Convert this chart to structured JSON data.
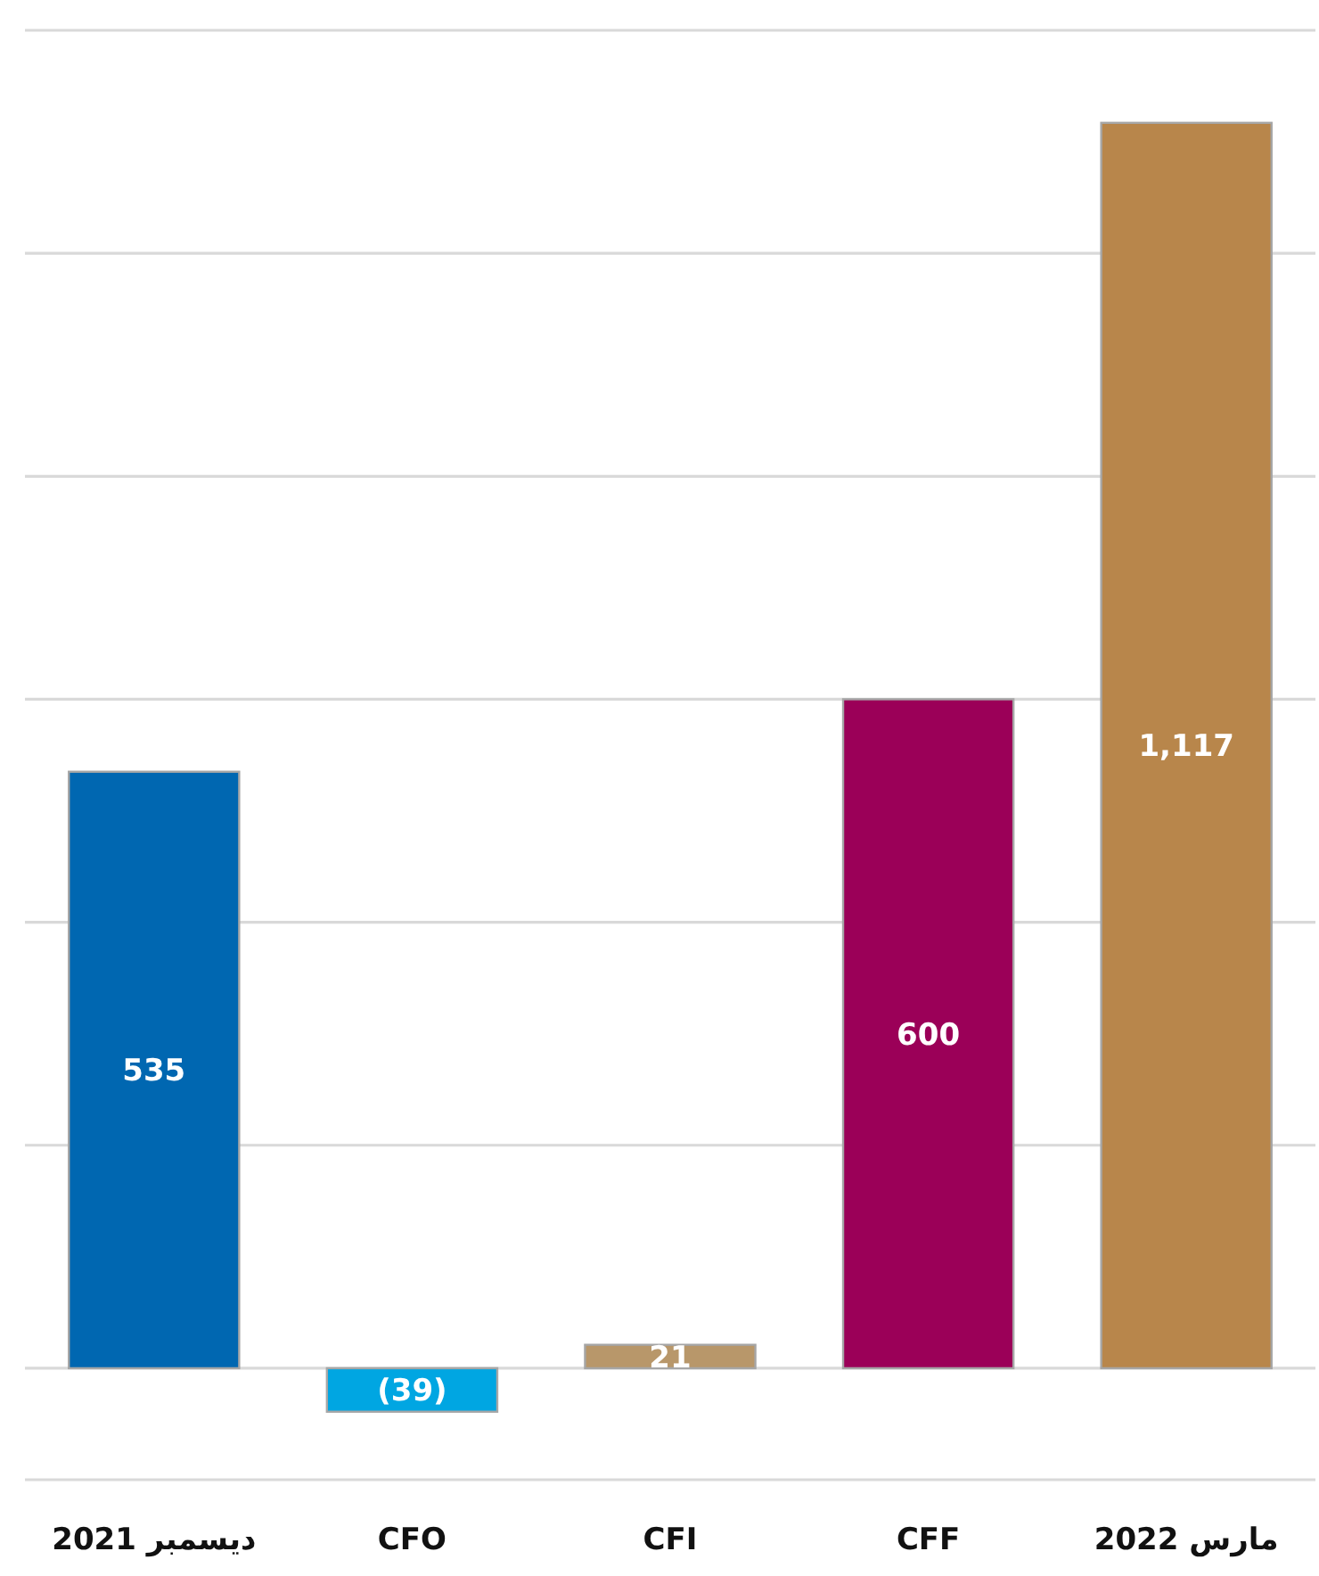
{
  "chart_data": {
    "type": "bar",
    "categories": [
      "ديسمبر 2021",
      "CFO",
      "CFI",
      "CFF",
      "مارس 2022"
    ],
    "values": [
      535,
      -39,
      21,
      600,
      1117
    ],
    "colors": [
      "#0067b1",
      "#00a6e2",
      "#b8976a",
      "#9b0058",
      "#b8864b"
    ],
    "value_labels": [
      "535",
      "(39)",
      "21",
      "600",
      "1,117"
    ],
    "ylim": [
      -100,
      1200
    ],
    "yticks": [
      {
        "value": -100,
        "label": null
      },
      {
        "value": 0,
        "label": null
      },
      {
        "value": 200,
        "label": null
      },
      {
        "value": 400,
        "label": null
      },
      {
        "value": 600,
        "label": null
      },
      {
        "value": 800,
        "label": null
      },
      {
        "value": 1000,
        "label": null
      },
      {
        "value": 1200,
        "label": null
      }
    ],
    "grid": "y",
    "tick_labels": "x"
  }
}
